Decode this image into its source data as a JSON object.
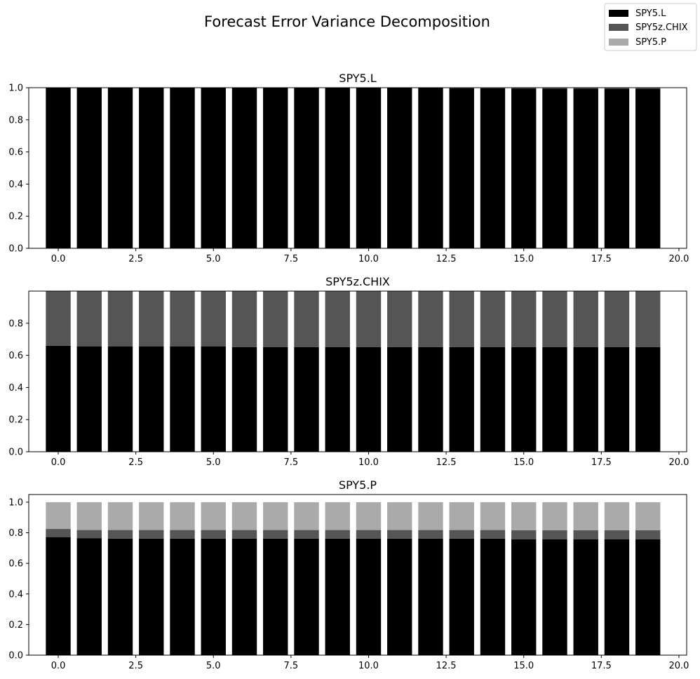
{
  "figure": {
    "title": "Forecast Error Variance Decomposition"
  },
  "legend": {
    "placement": "top-right",
    "entries": [
      {
        "label": "SPY5.L",
        "color": "#000000"
      },
      {
        "label": "SPY5z.CHIX",
        "color": "#555555"
      },
      {
        "label": "SPY5.P",
        "color": "#aaaaaa"
      }
    ]
  },
  "chart_data": [
    {
      "type": "bar",
      "stacked": true,
      "title": "SPY5.L",
      "x": [
        0,
        1,
        2,
        3,
        4,
        5,
        6,
        7,
        8,
        9,
        10,
        11,
        12,
        13,
        14,
        15,
        16,
        17,
        18,
        19
      ],
      "xlim": [
        -0.95,
        20.25
      ],
      "ylim": [
        0,
        1.0
      ],
      "xticks": [
        "0.0",
        "2.5",
        "5.0",
        "7.5",
        "10.0",
        "12.5",
        "15.0",
        "17.5",
        "20.0"
      ],
      "yticks": [
        "0.0",
        "0.2",
        "0.4",
        "0.6",
        "0.8",
        "1.0"
      ],
      "series": [
        {
          "name": "SPY5.L",
          "color": "#000000",
          "values": [
            1.0,
            1.0,
            1.0,
            1.0,
            1.0,
            1.0,
            1.0,
            1.0,
            1.0,
            1.0,
            0.999,
            0.999,
            0.998,
            0.997,
            0.996,
            0.995,
            0.994,
            0.994,
            0.993,
            0.993
          ]
        },
        {
          "name": "SPY5z.CHIX",
          "color": "#555555",
          "values": [
            0.0,
            0.0,
            0.0,
            0.0,
            0.0,
            0.0,
            0.0,
            0.0,
            0.0,
            0.0,
            0.001,
            0.001,
            0.002,
            0.002,
            0.003,
            0.004,
            0.004,
            0.004,
            0.005,
            0.005
          ]
        },
        {
          "name": "SPY5.P",
          "color": "#aaaaaa",
          "values": [
            0.0,
            0.0,
            0.0,
            0.0,
            0.0,
            0.0,
            0.0,
            0.0,
            0.0,
            0.0,
            0.0,
            0.0,
            0.0,
            0.001,
            0.001,
            0.001,
            0.002,
            0.002,
            0.002,
            0.002
          ]
        }
      ]
    },
    {
      "type": "bar",
      "stacked": true,
      "title": "SPY5z.CHIX",
      "x": [
        0,
        1,
        2,
        3,
        4,
        5,
        6,
        7,
        8,
        9,
        10,
        11,
        12,
        13,
        14,
        15,
        16,
        17,
        18,
        19
      ],
      "xlim": [
        -0.95,
        20.25
      ],
      "ylim": [
        0,
        1.0
      ],
      "xticks": [
        "0.0",
        "2.5",
        "5.0",
        "7.5",
        "10.0",
        "12.5",
        "15.0",
        "17.5",
        "20.0"
      ],
      "yticks": [
        "0.0",
        "0.2",
        "0.4",
        "0.6",
        "0.8"
      ],
      "series": [
        {
          "name": "SPY5.L",
          "color": "#000000",
          "values": [
            0.66,
            0.655,
            0.655,
            0.655,
            0.655,
            0.655,
            0.652,
            0.652,
            0.652,
            0.652,
            0.652,
            0.652,
            0.652,
            0.652,
            0.652,
            0.652,
            0.652,
            0.652,
            0.652,
            0.652
          ]
        },
        {
          "name": "SPY5z.CHIX",
          "color": "#555555",
          "values": [
            0.34,
            0.345,
            0.345,
            0.345,
            0.345,
            0.345,
            0.348,
            0.348,
            0.348,
            0.348,
            0.348,
            0.348,
            0.348,
            0.348,
            0.348,
            0.348,
            0.348,
            0.348,
            0.348,
            0.348
          ]
        },
        {
          "name": "SPY5.P",
          "color": "#aaaaaa",
          "values": [
            0.0,
            0.0,
            0.0,
            0.0,
            0.0,
            0.0,
            0.0,
            0.0,
            0.0,
            0.0,
            0.0,
            0.0,
            0.0,
            0.0,
            0.0,
            0.0,
            0.0,
            0.0,
            0.0,
            0.0
          ]
        }
      ]
    },
    {
      "type": "bar",
      "stacked": true,
      "title": "SPY5.P",
      "x": [
        0,
        1,
        2,
        3,
        4,
        5,
        6,
        7,
        8,
        9,
        10,
        11,
        12,
        13,
        14,
        15,
        16,
        17,
        18,
        19
      ],
      "xlim": [
        -0.95,
        20.25
      ],
      "ylim": [
        0,
        1.05
      ],
      "xticks": [
        "0.0",
        "2.5",
        "5.0",
        "7.5",
        "10.0",
        "12.5",
        "15.0",
        "17.5",
        "20.0"
      ],
      "yticks": [
        "0.0",
        "0.2",
        "0.4",
        "0.6",
        "0.8",
        "1.0"
      ],
      "series": [
        {
          "name": "SPY5.L",
          "color": "#000000",
          "values": [
            0.772,
            0.765,
            0.762,
            0.762,
            0.762,
            0.762,
            0.762,
            0.762,
            0.762,
            0.762,
            0.762,
            0.762,
            0.762,
            0.762,
            0.762,
            0.758,
            0.758,
            0.758,
            0.758,
            0.758
          ]
        },
        {
          "name": "SPY5z.CHIX",
          "color": "#555555",
          "values": [
            0.053,
            0.053,
            0.056,
            0.056,
            0.056,
            0.056,
            0.056,
            0.056,
            0.056,
            0.056,
            0.056,
            0.056,
            0.056,
            0.056,
            0.056,
            0.058,
            0.058,
            0.058,
            0.058,
            0.058
          ]
        },
        {
          "name": "SPY5.P",
          "color": "#aaaaaa",
          "values": [
            0.175,
            0.182,
            0.182,
            0.182,
            0.182,
            0.182,
            0.182,
            0.182,
            0.182,
            0.182,
            0.182,
            0.182,
            0.182,
            0.182,
            0.182,
            0.184,
            0.184,
            0.184,
            0.184,
            0.184
          ]
        }
      ]
    }
  ]
}
